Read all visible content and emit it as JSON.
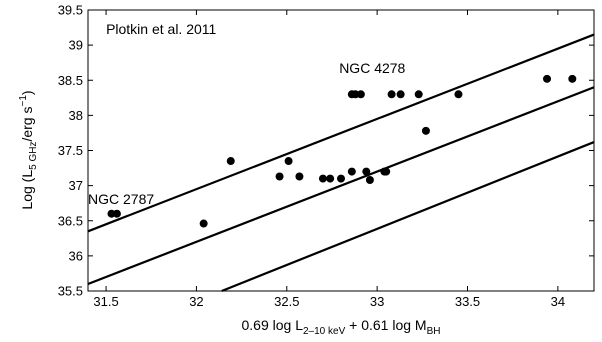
{
  "chart_data": {
    "type": "scatter",
    "x": {
      "range": [
        31.4,
        34.2
      ],
      "ticks": [
        31.5,
        32,
        32.5,
        33,
        33.5,
        34
      ],
      "tick_labels": [
        "31.5",
        "32",
        "32.5",
        "33",
        "33.5",
        "34"
      ],
      "label": {
        "a": "0.69 log L",
        "a_sub": "2–10 keV",
        "b": " + 0.61 log M",
        "b_sub": "BH"
      }
    },
    "y": {
      "range": [
        35.5,
        39.5
      ],
      "ticks": [
        35.5,
        36,
        36.5,
        37,
        37.5,
        38,
        38.5,
        39,
        39.5
      ],
      "tick_labels": [
        "35.5",
        "36",
        "36.5",
        "37",
        "37.5",
        "38",
        "38.5",
        "39",
        "39.5"
      ],
      "label": {
        "a": "Log (L",
        "a_sub": "5 GHz",
        "b": "/erg s",
        "b_sup": "−1",
        "c": ")"
      }
    },
    "points": [
      {
        "x": 31.53,
        "y": 36.6
      },
      {
        "x": 31.56,
        "y": 36.6
      },
      {
        "x": 32.04,
        "y": 36.46
      },
      {
        "x": 32.19,
        "y": 37.35
      },
      {
        "x": 32.46,
        "y": 37.13
      },
      {
        "x": 32.51,
        "y": 37.35
      },
      {
        "x": 32.57,
        "y": 37.13
      },
      {
        "x": 32.7,
        "y": 37.1
      },
      {
        "x": 32.74,
        "y": 37.1
      },
      {
        "x": 32.8,
        "y": 37.1
      },
      {
        "x": 32.86,
        "y": 38.3
      },
      {
        "x": 32.88,
        "y": 38.3
      },
      {
        "x": 32.86,
        "y": 37.2
      },
      {
        "x": 32.91,
        "y": 38.3
      },
      {
        "x": 32.94,
        "y": 37.2
      },
      {
        "x": 32.96,
        "y": 37.08
      },
      {
        "x": 33.04,
        "y": 37.2
      },
      {
        "x": 33.05,
        "y": 37.2
      },
      {
        "x": 33.08,
        "y": 38.3
      },
      {
        "x": 33.13,
        "y": 38.3
      },
      {
        "x": 33.23,
        "y": 38.3
      },
      {
        "x": 33.27,
        "y": 37.78
      },
      {
        "x": 33.45,
        "y": 38.3
      },
      {
        "x": 33.94,
        "y": 38.52
      },
      {
        "x": 34.08,
        "y": 38.52
      }
    ],
    "lines": [
      {
        "x1": 31.4,
        "y1": 36.35,
        "x2": 34.2,
        "y2": 39.15
      },
      {
        "x1": 31.4,
        "y1": 35.6,
        "x2": 34.2,
        "y2": 38.4
      },
      {
        "x1": 32.14,
        "y1": 35.5,
        "x2": 34.2,
        "y2": 37.62
      }
    ],
    "annotations": [
      {
        "text": "Plotkin et al. 2011",
        "x": 31.5,
        "y": 39.16
      },
      {
        "text": "NGC 4278",
        "x": 32.79,
        "y": 38.6
      },
      {
        "text": "NGC 2787",
        "x": 31.4,
        "y": 36.74
      }
    ],
    "grid": false,
    "legend": false
  }
}
